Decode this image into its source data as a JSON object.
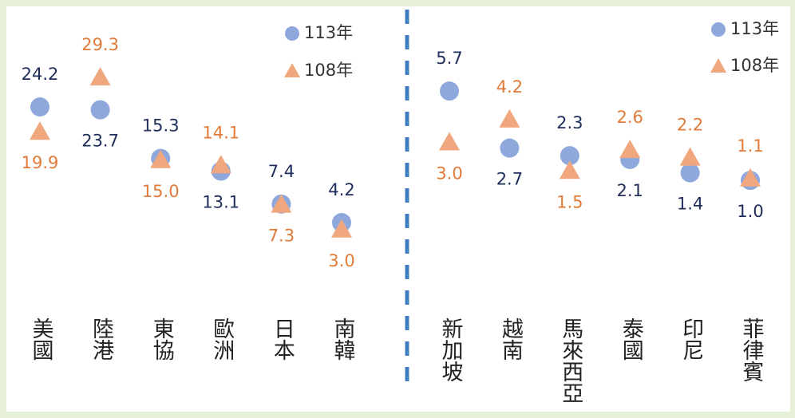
{
  "chart_data": [
    {
      "type": "dot",
      "categories": [
        "美國",
        "陸港",
        "東協",
        "歐洲",
        "日本",
        "南韓"
      ],
      "series": [
        {
          "name": "113年",
          "color": "#8fa8dc",
          "label_color": "#1f2d5a",
          "marker": "circle",
          "values": [
            24.2,
            23.7,
            15.3,
            13.1,
            7.4,
            4.2
          ]
        },
        {
          "name": "108年",
          "color": "#f0a77e",
          "label_color": "#e07b3a",
          "marker": "triangle",
          "values": [
            19.9,
            29.3,
            15.0,
            14.1,
            7.3,
            3.0
          ],
          "value_labels": [
            "19.9",
            "29.3",
            "15.0",
            "14.1",
            "7.3",
            "3.0"
          ]
        }
      ],
      "ylim": [
        0,
        30
      ]
    },
    {
      "type": "dot",
      "categories": [
        "新加坡",
        "越南",
        "馬來西亞",
        "泰國",
        "印尼",
        "菲律賓"
      ],
      "series": [
        {
          "name": "113年",
          "color": "#8fa8dc",
          "label_color": "#1f2d5a",
          "marker": "circle",
          "values": [
            5.7,
            2.7,
            2.3,
            2.1,
            1.4,
            1.0
          ],
          "value_labels": [
            "5.7",
            "2.7",
            "2.3",
            "2.1",
            "1.4",
            "1.0"
          ]
        },
        {
          "name": "108年",
          "color": "#f0a77e",
          "label_color": "#e07b3a",
          "marker": "triangle",
          "values": [
            3.0,
            4.2,
            1.5,
            2.6,
            2.2,
            1.1
          ],
          "value_labels": [
            "3.0",
            "4.2",
            "1.5",
            "2.6",
            "2.2",
            "1.1"
          ]
        }
      ],
      "ylim": [
        0,
        6
      ]
    }
  ]
}
